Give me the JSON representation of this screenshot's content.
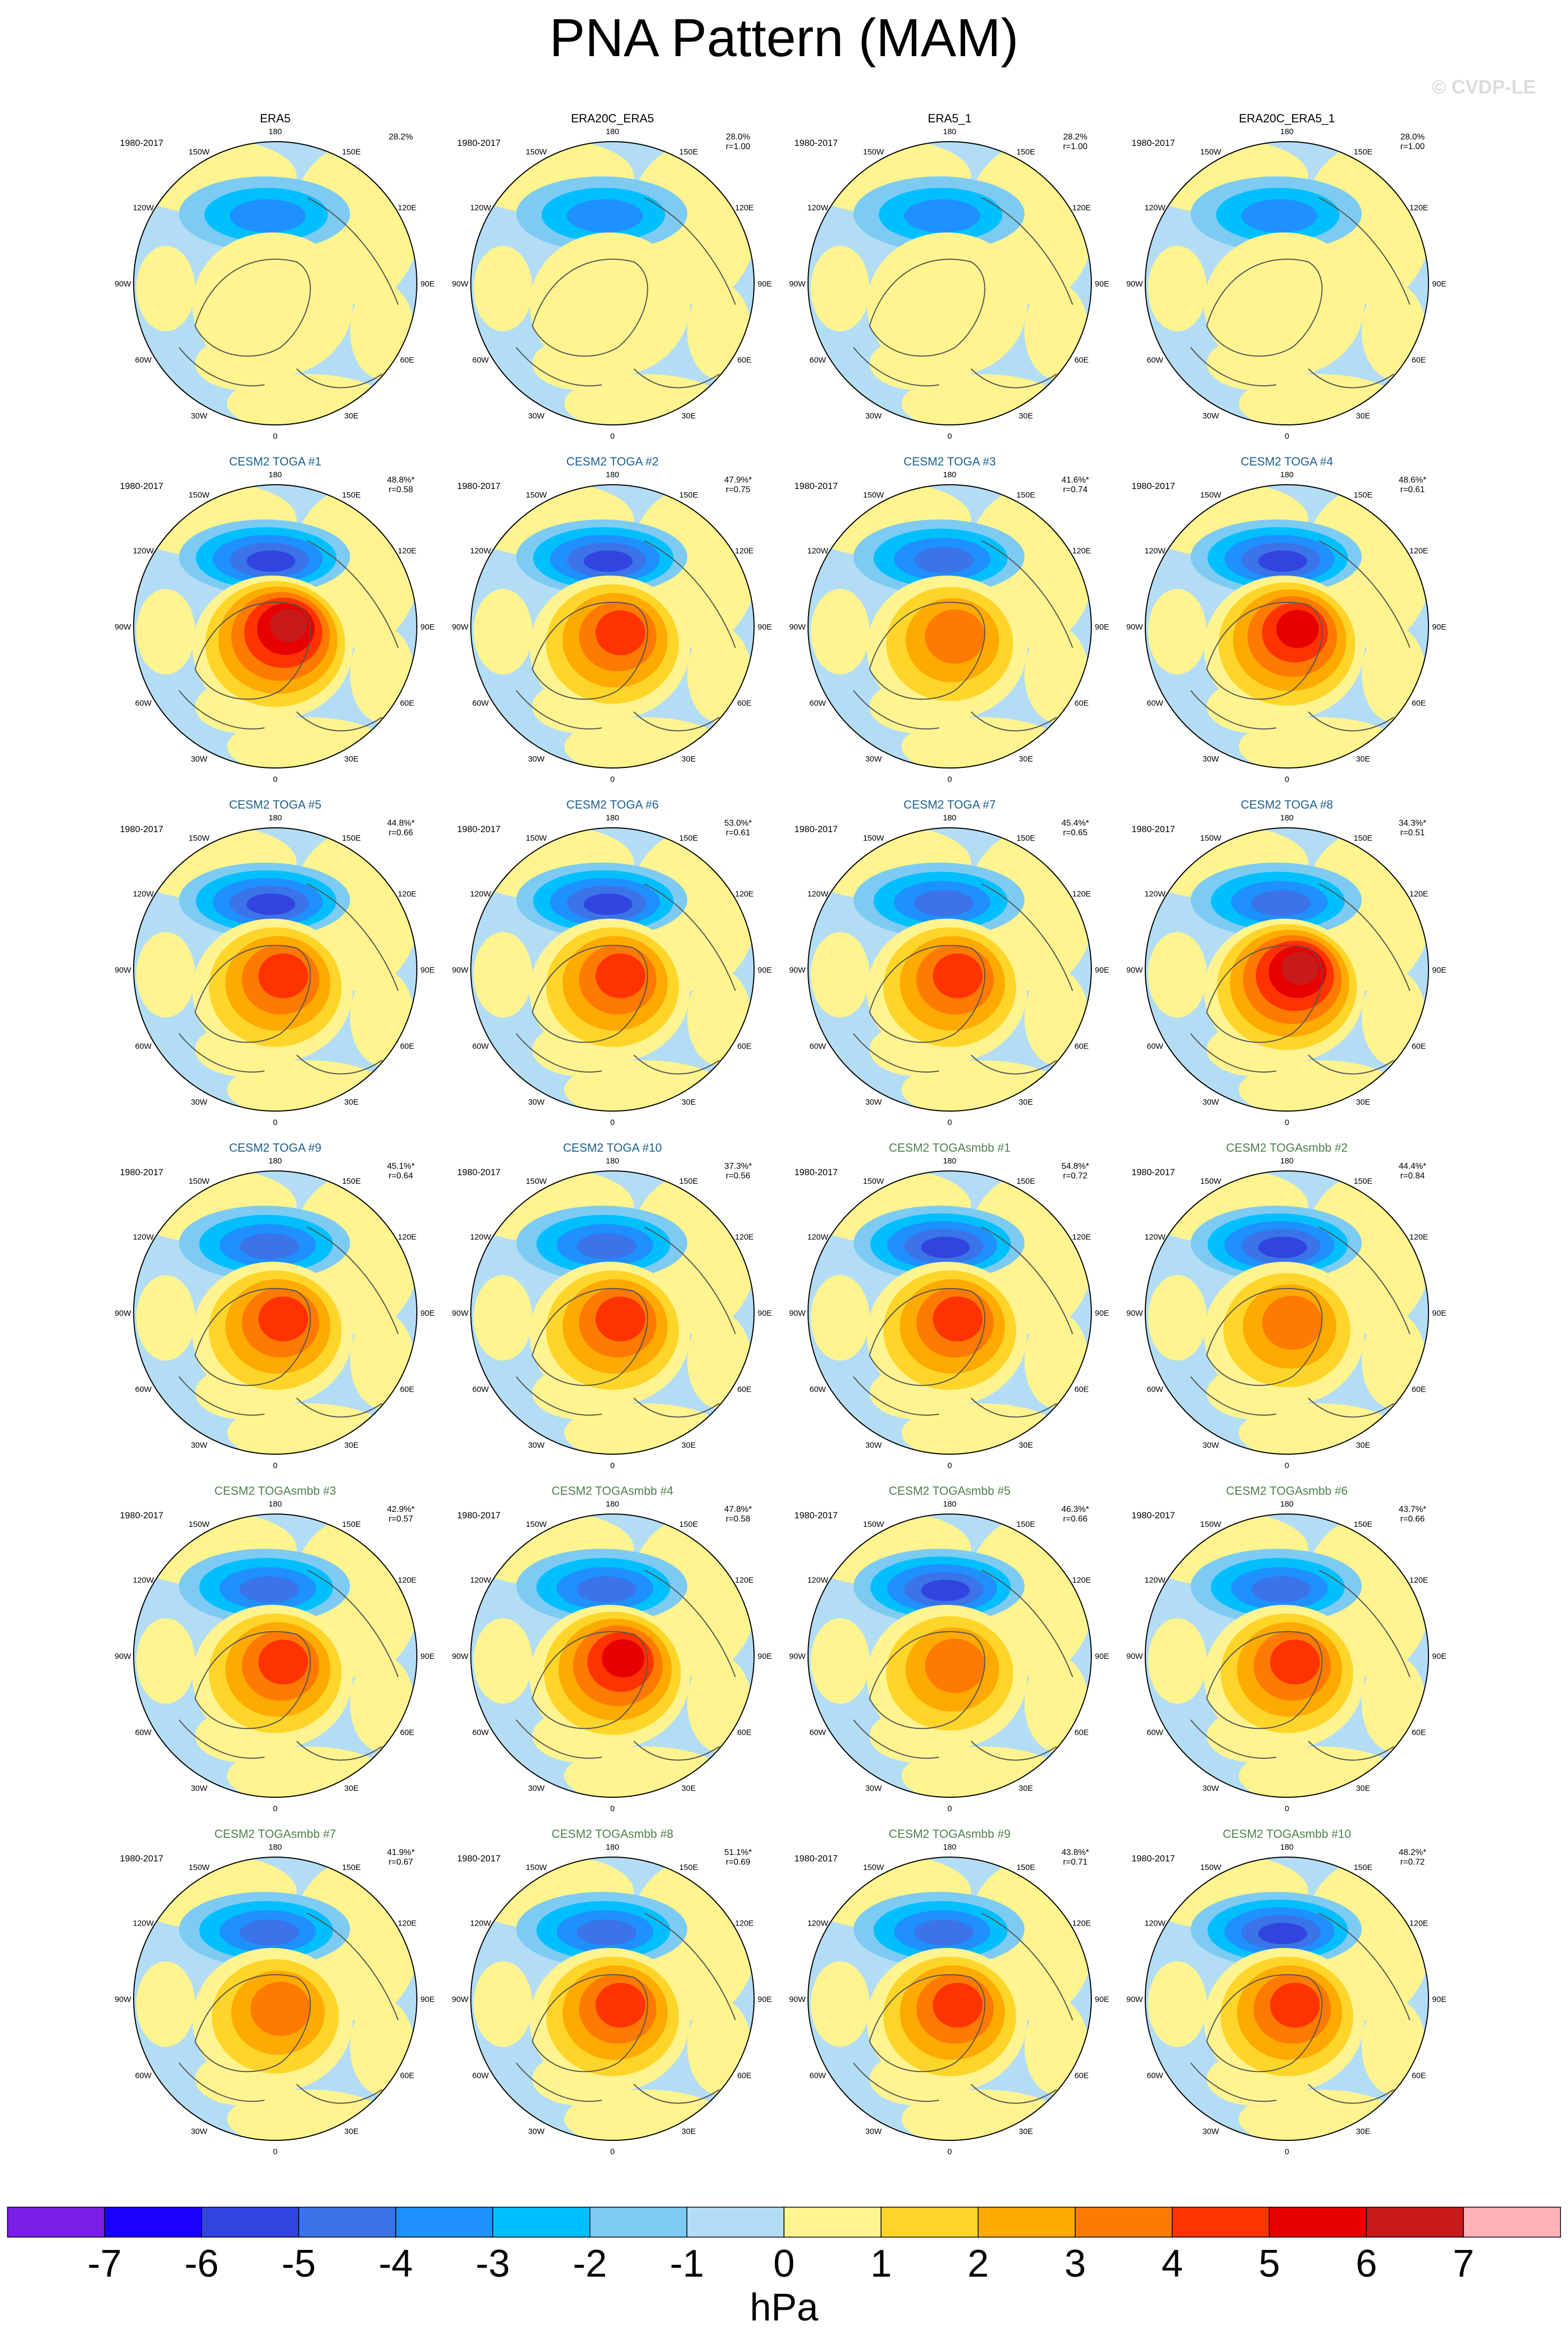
{
  "title": "PNA Pattern (MAM)",
  "watermark": "© CVDP-LE",
  "period": "1980-2017",
  "lon_labels": [
    "180",
    "150E",
    "120E",
    "90E",
    "60E",
    "30E",
    "0",
    "30W",
    "60W",
    "90W",
    "120W",
    "150W"
  ],
  "colors": {
    "title_obs": "#000000",
    "title_toga": "#1a5f8e",
    "title_togasmbb": "#4f7f4f",
    "land_outline": "#555555"
  },
  "panels": [
    {
      "title": "ERA5",
      "pct": "28.2%",
      "r": "",
      "kind": "obs",
      "amp": 0.2,
      "neg": 2.6
    },
    {
      "title": "ERA20C_ERA5",
      "pct": "28.0%",
      "r": "r=1.00",
      "kind": "obs",
      "amp": 0.25,
      "neg": 2.7
    },
    {
      "title": "ERA5_1",
      "pct": "28.2%",
      "r": "r=1.00",
      "kind": "obs",
      "amp": 0.2,
      "neg": 2.6
    },
    {
      "title": "ERA20C_ERA5_1",
      "pct": "28.0%",
      "r": "r=1.00",
      "kind": "obs",
      "amp": 0.25,
      "neg": 2.7
    },
    {
      "title": "CESM2 TOGA #1",
      "pct": "48.8%*",
      "r": "r=0.58",
      "kind": "toga",
      "amp": 6.5,
      "neg": 4.5
    },
    {
      "title": "CESM2 TOGA #2",
      "pct": "47.9%*",
      "r": "r=0.75",
      "kind": "toga",
      "amp": 4.6,
      "neg": 4.8
    },
    {
      "title": "CESM2 TOGA #3",
      "pct": "41.6%*",
      "r": "r=0.74",
      "kind": "toga",
      "amp": 4.3,
      "neg": 4.2
    },
    {
      "title": "CESM2 TOGA #4",
      "pct": "48.6%*",
      "r": "r=0.61",
      "kind": "toga",
      "amp": 5.5,
      "neg": 4.6
    },
    {
      "title": "CESM2 TOGA #5",
      "pct": "44.8%*",
      "r": "r=0.66",
      "kind": "toga",
      "amp": 4.5,
      "neg": 4.6
    },
    {
      "title": "CESM2 TOGA #6",
      "pct": "53.0%*",
      "r": "r=0.61",
      "kind": "toga",
      "amp": 5.4,
      "neg": 4.7
    },
    {
      "title": "CESM2 TOGA #7",
      "pct": "45.4%*",
      "r": "r=0.65",
      "kind": "toga",
      "amp": 5.3,
      "neg": 4.3
    },
    {
      "title": "CESM2 TOGA #8",
      "pct": "34.3%*",
      "r": "r=0.51",
      "kind": "toga",
      "amp": 6.8,
      "neg": 4.1
    },
    {
      "title": "CESM2 TOGA #9",
      "pct": "45.1%*",
      "r": "r=0.64",
      "kind": "toga",
      "amp": 5.2,
      "neg": 4.2
    },
    {
      "title": "CESM2 TOGA #10",
      "pct": "37.3%*",
      "r": "r=0.56",
      "kind": "toga",
      "amp": 5.0,
      "neg": 3.8
    },
    {
      "title": "CESM2 TOGAsmbb #1",
      "pct": "54.8%*",
      "r": "r=0.72",
      "kind": "togasmbb",
      "amp": 5.3,
      "neg": 5.0
    },
    {
      "title": "CESM2 TOGAsmbb #2",
      "pct": "44.4%*",
      "r": "r=0.84",
      "kind": "togasmbb",
      "amp": 4.4,
      "neg": 5.0
    },
    {
      "title": "CESM2 TOGAsmbb #3",
      "pct": "42.9%*",
      "r": "r=0.57",
      "kind": "togasmbb",
      "amp": 5.4,
      "neg": 4.3
    },
    {
      "title": "CESM2 TOGAsmbb #4",
      "pct": "47.8%*",
      "r": "r=0.58",
      "kind": "togasmbb",
      "amp": 5.5,
      "neg": 4.3
    },
    {
      "title": "CESM2 TOGAsmbb #5",
      "pct": "46.3%*",
      "r": "r=0.66",
      "kind": "togasmbb",
      "amp": 4.2,
      "neg": 4.5
    },
    {
      "title": "CESM2 TOGAsmbb #6",
      "pct": "43.7%*",
      "r": "r=0.66",
      "kind": "togasmbb",
      "amp": 4.9,
      "neg": 4.4
    },
    {
      "title": "CESM2 TOGAsmbb #7",
      "pct": "41.9%*",
      "r": "r=0.67",
      "kind": "togasmbb",
      "amp": 3.7,
      "neg": 3.8
    },
    {
      "title": "CESM2 TOGAsmbb #8",
      "pct": "51.1%*",
      "r": "r=0.69",
      "kind": "togasmbb",
      "amp": 4.7,
      "neg": 4.3
    },
    {
      "title": "CESM2 TOGAsmbb #9",
      "pct": "43.8%*",
      "r": "r=0.71",
      "kind": "togasmbb",
      "amp": 5.2,
      "neg": 4.1
    },
    {
      "title": "CESM2 TOGAsmbb #10",
      "pct": "48.2%*",
      "r": "r=0.72",
      "kind": "togasmbb",
      "amp": 5.4,
      "neg": 5.0
    }
  ],
  "colorbar": {
    "unit": "hPa",
    "ticks": [
      "-7",
      "-6",
      "-5",
      "-4",
      "-3",
      "-2",
      "-1",
      "0",
      "1",
      "2",
      "3",
      "4",
      "5",
      "6",
      "7"
    ],
    "colors": [
      "#7b1fe6",
      "#1a00ff",
      "#3144e0",
      "#3a74e8",
      "#1e90ff",
      "#00bfff",
      "#7dcbf2",
      "#b3ddf5",
      "#fff48f",
      "#ffd52a",
      "#ffaa00",
      "#ff7a00",
      "#ff3300",
      "#e60000",
      "#c81a1a",
      "#ffb3b8"
    ]
  }
}
